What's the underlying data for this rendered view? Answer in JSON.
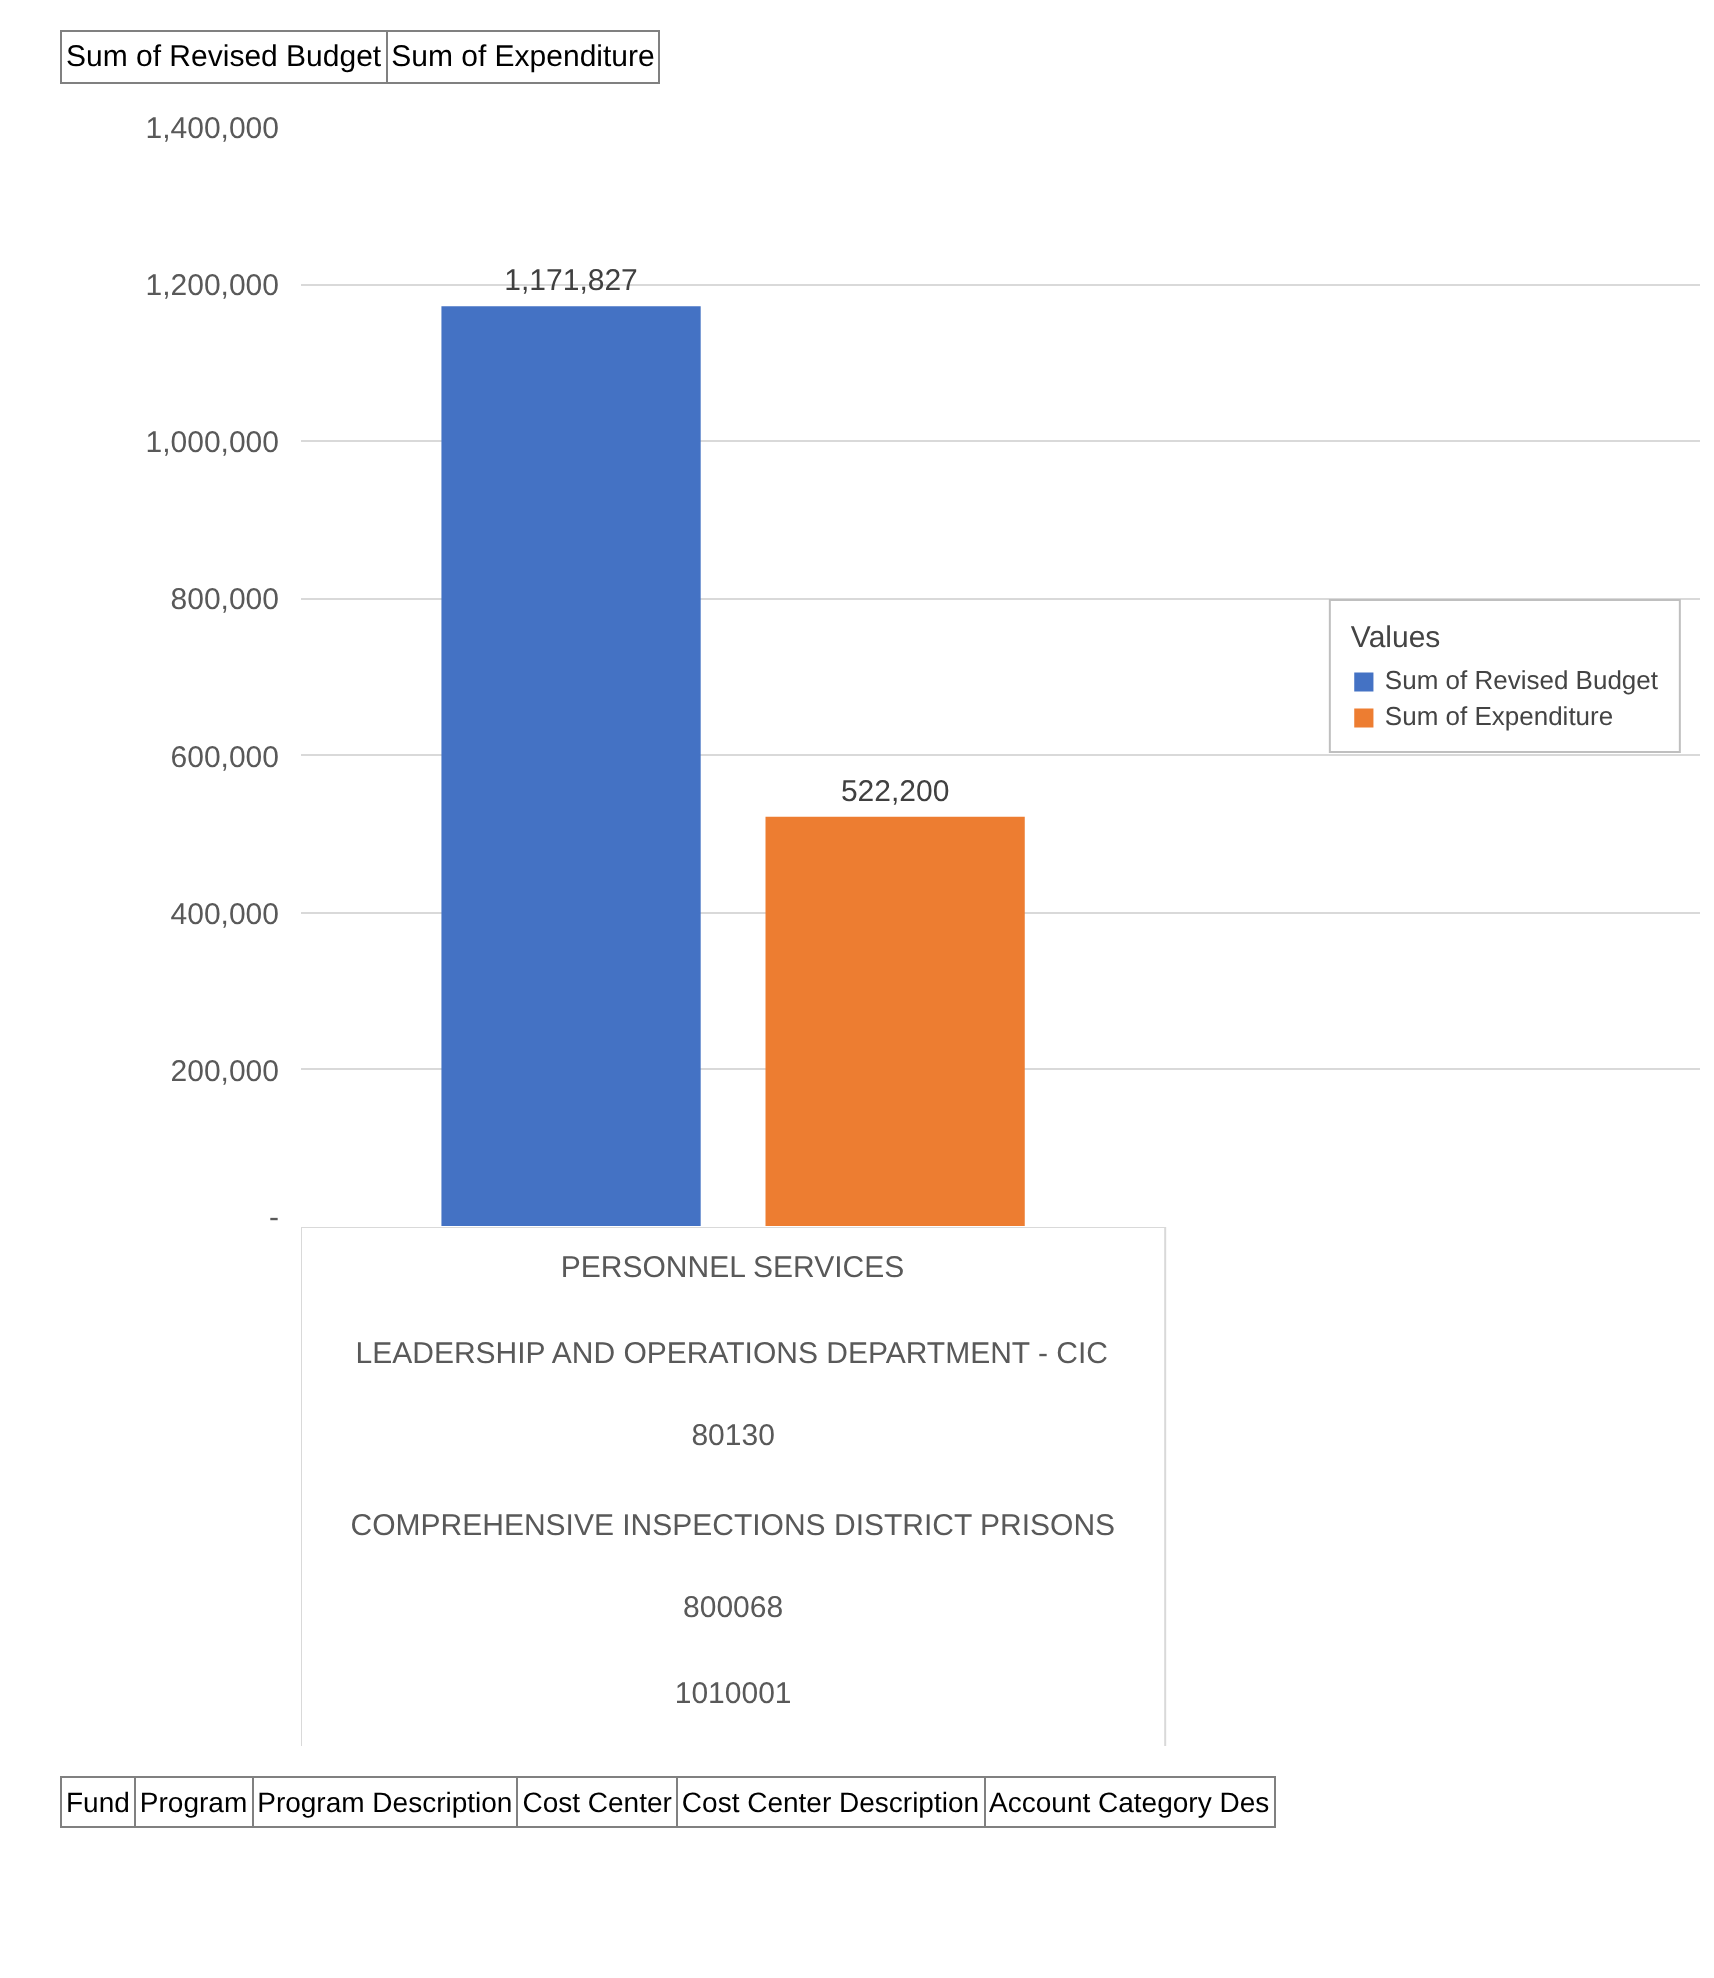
{
  "chart_data": {
    "type": "bar",
    "categories": [
      "PERSONNEL SERVICES\nLEADERSHIP AND OPERATIONS DEPARTMENT - CIC\n80130\nCOMPREHENSIVE INSPECTIONS DISTRICT PRISONS\n800068\n1010001"
    ],
    "series": [
      {
        "name": "Sum of Revised Budget",
        "color": "#4472c4",
        "values": [
          1171827
        ],
        "value_labels": [
          "1,171,827"
        ]
      },
      {
        "name": "Sum of Expenditure",
        "color": "#ed7d31",
        "values": [
          522200
        ],
        "value_labels": [
          "522,200"
        ]
      }
    ],
    "ylim": [
      0,
      1400000
    ],
    "yticks": [
      {
        "value": 0,
        "label": "-"
      },
      {
        "value": 200000,
        "label": "200,000"
      },
      {
        "value": 400000,
        "label": "400,000"
      },
      {
        "value": 600000,
        "label": "600,000"
      },
      {
        "value": 800000,
        "label": "800,000"
      },
      {
        "value": 1000000,
        "label": "1,000,000"
      },
      {
        "value": 1200000,
        "label": "1,200,000"
      },
      {
        "value": 1400000,
        "label": "1,400,000"
      }
    ],
    "grid": "y",
    "legend": "right",
    "legend_title": "Values",
    "annotations": [
      "Sum of Revised Budget",
      "Sum of Expenditure",
      "Fund",
      "Program",
      "Program Description",
      "Cost Center",
      "Cost Center Description",
      "Account Category Des"
    ]
  }
}
